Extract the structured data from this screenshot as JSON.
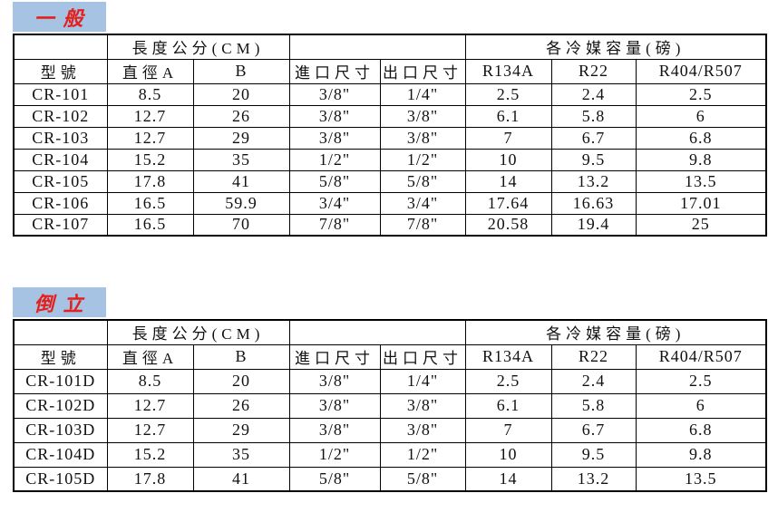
{
  "colors": {
    "title_background": "#a6c3e3",
    "title_text": "#e3201d",
    "table_border": "#000000",
    "cell_text": "#111111"
  },
  "tables": [
    {
      "title": "一般",
      "header": {
        "model": "型號",
        "length_group": "長度公分(CM)",
        "diameter_a": "直徑A",
        "b": "B",
        "inlet": "進口尺寸",
        "outlet": "出口尺寸",
        "refrigerant_group": "各冷媒容量(磅)",
        "r134a": "R134A",
        "r22": "R22",
        "r404_r507": "R404/R507"
      },
      "rows": [
        [
          "CR-101",
          "8.5",
          "20",
          "3/8\"",
          "1/4\"",
          "2.5",
          "2.4",
          "2.5"
        ],
        [
          "CR-102",
          "12.7",
          "26",
          "3/8\"",
          "3/8\"",
          "6.1",
          "5.8",
          "6"
        ],
        [
          "CR-103",
          "12.7",
          "29",
          "3/8\"",
          "3/8\"",
          "7",
          "6.7",
          "6.8"
        ],
        [
          "CR-104",
          "15.2",
          "35",
          "1/2\"",
          "1/2\"",
          "10",
          "9.5",
          "9.8"
        ],
        [
          "CR-105",
          "17.8",
          "41",
          "5/8\"",
          "5/8\"",
          "14",
          "13.2",
          "13.5"
        ],
        [
          "CR-106",
          "16.5",
          "59.9",
          "3/4\"",
          "3/4\"",
          "17.64",
          "16.63",
          "17.01"
        ],
        [
          "CR-107",
          "16.5",
          "70",
          "7/8\"",
          "7/8\"",
          "20.58",
          "19.4",
          "25"
        ]
      ]
    },
    {
      "title": "倒立",
      "header": {
        "model": "型號",
        "length_group": "長度公分(CM)",
        "diameter_a": "直徑A",
        "b": "B",
        "inlet": "進口尺寸",
        "outlet": "出口尺寸",
        "refrigerant_group": "各冷媒容量(磅)",
        "r134a": "R134A",
        "r22": "R22",
        "r404_r507": "R404/R507"
      },
      "rows": [
        [
          "CR-101D",
          "8.5",
          "20",
          "3/8\"",
          "1/4\"",
          "2.5",
          "2.4",
          "2.5"
        ],
        [
          "CR-102D",
          "12.7",
          "26",
          "3/8\"",
          "3/8\"",
          "6.1",
          "5.8",
          "6"
        ],
        [
          "CR-103D",
          "12.7",
          "29",
          "3/8\"",
          "3/8\"",
          "7",
          "6.7",
          "6.8"
        ],
        [
          "CR-104D",
          "15.2",
          "35",
          "1/2\"",
          "1/2\"",
          "10",
          "9.5",
          "9.8"
        ],
        [
          "CR-105D",
          "17.8",
          "41",
          "5/8\"",
          "5/8\"",
          "14",
          "13.2",
          "13.5"
        ]
      ]
    }
  ]
}
